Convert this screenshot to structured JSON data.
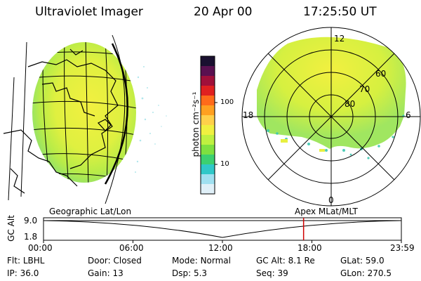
{
  "header": {
    "title": "Ultraviolet Imager",
    "date": "20 Apr 00",
    "time": "17:25:50 UT"
  },
  "colorbar": {
    "label": "photon cm⁻²s⁻¹",
    "ticks": [
      "100",
      "10"
    ],
    "colors": [
      "#1a1030",
      "#5a1050",
      "#a0103a",
      "#e02020",
      "#ff6a1a",
      "#ffa020",
      "#ffd04a",
      "#f0f040",
      "#bff040",
      "#7ee040",
      "#3cd070",
      "#30c8c8",
      "#a0e0f0",
      "#e0f0f8"
    ]
  },
  "geo_panel": {
    "label": "Geographic Lat/Lon"
  },
  "polar_panel": {
    "label": "Apex MLat/MLT",
    "mlt_labels": {
      "top": "12",
      "left": "18",
      "right": "6",
      "bottom": "0"
    },
    "lat_labels": [
      "60",
      "70",
      "80"
    ]
  },
  "altplot": {
    "ylabel": "GC Alt",
    "yticks": [
      "9.0",
      "1.8"
    ],
    "xticks": [
      "00:00",
      "06:00",
      "12:00",
      "18:00",
      "23:59"
    ],
    "marker_time": "17:25:50"
  },
  "info": {
    "row1": [
      {
        "k": "Flt:",
        "v": "LBHL"
      },
      {
        "k": "Door:",
        "v": "Closed"
      },
      {
        "k": "Mode:",
        "v": "Normal"
      },
      {
        "k": "GC Alt:",
        "v": "8.1 Re"
      },
      {
        "k": "GLat:",
        "v": "59.0"
      }
    ],
    "row2": [
      {
        "k": "IP:",
        "v": "36.0"
      },
      {
        "k": "Gain:",
        "v": "13"
      },
      {
        "k": "Dsp:",
        "v": "5.3"
      },
      {
        "k": "Seq:",
        "v": "39"
      },
      {
        "k": "GLon:",
        "v": "270.5"
      }
    ]
  }
}
